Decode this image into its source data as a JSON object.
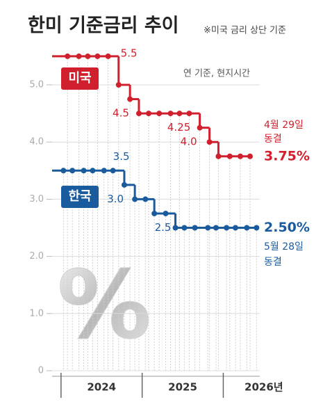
{
  "chart_data": {
    "type": "line",
    "step": "post",
    "title": "한미 기준금리 추이",
    "note": "※미국 금리 상단 기준",
    "unit_note": "연 기준, 현지시간",
    "watermark": "%",
    "xlim": [
      2023.89,
      2026.45
    ],
    "xticks": [
      {
        "value": 2024,
        "label": "2024"
      },
      {
        "value": 2025,
        "label": "2025"
      },
      {
        "value": 2026,
        "label": "2026년"
      }
    ],
    "ylim": [
      0,
      5.6
    ],
    "yticks": [
      0,
      {
        "value": 1,
        "label": "1.0"
      },
      {
        "value": 2,
        "label": "2.0"
      },
      {
        "value": 3,
        "label": "3.0"
      },
      {
        "value": 4,
        "label": "4.0"
      },
      {
        "value": 5,
        "label": "5.0"
      }
    ],
    "grid": true,
    "series": [
      {
        "name": "미국",
        "color": "#d0202e",
        "x": [
          2024.08,
          2024.22,
          2024.33,
          2024.45,
          2024.58,
          2024.71,
          2024.85,
          2024.96,
          2025.08,
          2025.21,
          2025.35,
          2025.46,
          2025.58,
          2025.71,
          2025.83,
          2025.94,
          2026.08,
          2026.21,
          2026.33
        ],
        "values": [
          5.5,
          5.5,
          5.5,
          5.5,
          5.5,
          5.0,
          4.75,
          4.5,
          4.5,
          4.5,
          4.5,
          4.5,
          4.5,
          4.25,
          4.0,
          3.75,
          3.75,
          3.75,
          3.75
        ],
        "value_labels": [
          null,
          null,
          null,
          null,
          "5.5",
          null,
          null,
          "4.5",
          null,
          null,
          null,
          null,
          null,
          "4.25",
          "4.0",
          null,
          null,
          null,
          "3.75%"
        ],
        "note": [
          "4월 29일",
          "동결"
        ]
      },
      {
        "name": "한국",
        "color": "#1a5b9e",
        "x": [
          2024.03,
          2024.14,
          2024.28,
          2024.39,
          2024.53,
          2024.64,
          2024.78,
          2024.91,
          2025.04,
          2025.15,
          2025.29,
          2025.41,
          2025.52,
          2025.65,
          2025.81,
          2025.91,
          2026.04,
          2026.15,
          2026.29,
          2026.41
        ],
        "values": [
          3.5,
          3.5,
          3.5,
          3.5,
          3.5,
          3.5,
          3.25,
          3.0,
          3.0,
          2.75,
          2.75,
          2.5,
          2.5,
          2.5,
          2.5,
          2.5,
          2.5,
          2.5,
          2.5,
          2.5
        ],
        "value_labels": [
          null,
          null,
          null,
          null,
          null,
          "3.5",
          null,
          "3.0",
          null,
          null,
          null,
          "2.5",
          null,
          null,
          null,
          null,
          null,
          null,
          null,
          "2.50%"
        ],
        "note": [
          "5월 28일",
          "동결"
        ]
      }
    ]
  }
}
